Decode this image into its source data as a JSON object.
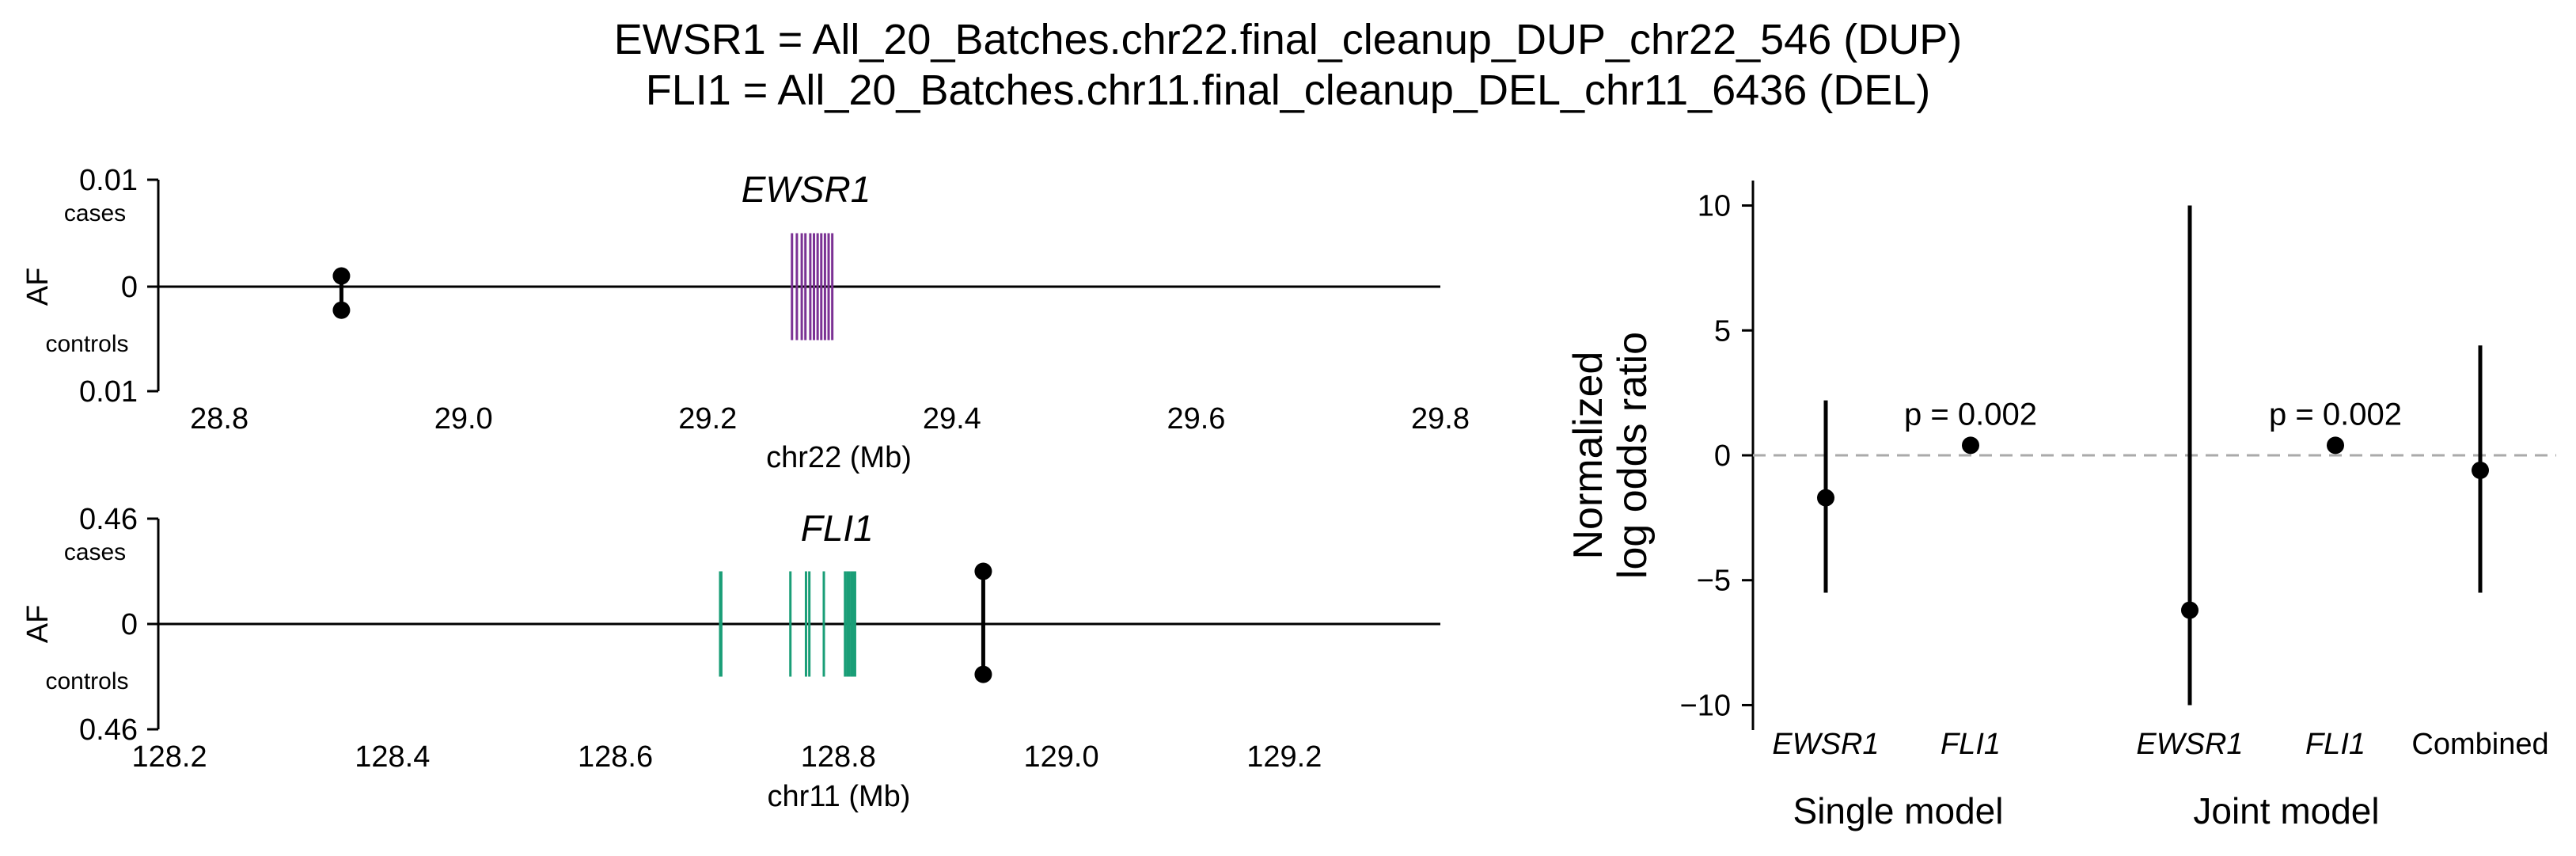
{
  "title_lines": [
    "EWSR1 = All_20_Batches.chr22.final_cleanup_DUP_chr22_546 (DUP)",
    "FLI1 = All_20_Batches.chr11.final_cleanup_DEL_chr11_6436 (DEL)"
  ],
  "colors": {
    "ewsr1": "#7b3294",
    "fli1": "#1a9e77",
    "points": "#000000",
    "reference_line": "#aaaaaa"
  },
  "chart_data": [
    {
      "id": "ewsr1_locus",
      "type": "locus",
      "gene": "EWSR1",
      "gene_color": "#7b3294",
      "xlabel": "chr22 (Mb)",
      "ylabel": "AF",
      "xlim": [
        28.75,
        29.8
      ],
      "xticks": [
        "28.8",
        "29.0",
        "29.2",
        "29.4",
        "29.6",
        "29.8"
      ],
      "xtick_values": [
        28.8,
        29.0,
        29.2,
        29.4,
        29.6,
        29.8
      ],
      "y_top_label": "0.01",
      "y_zero_label": "0",
      "y_bottom_label": "0.01",
      "cases_label": "cases",
      "controls_label": "controls",
      "af_max": 0.01,
      "exons_mb": [
        29.269,
        29.273,
        29.277,
        29.28,
        29.284,
        29.287,
        29.29,
        29.293,
        29.296,
        29.299,
        29.302
      ],
      "exon_height_fraction": 0.5,
      "variant": {
        "pos_mb": 28.9,
        "af_cases": 0.001,
        "af_controls": 0.0022
      }
    },
    {
      "id": "fli1_locus",
      "type": "locus",
      "gene": "FLI1",
      "gene_color": "#1a9e77",
      "xlabel": "chr11 (Mb)",
      "ylabel": "AF",
      "xlim": [
        128.19,
        129.34
      ],
      "xticks": [
        "128.2",
        "128.4",
        "128.6",
        "128.8",
        "129.0",
        "129.2"
      ],
      "xtick_values": [
        128.2,
        128.4,
        128.6,
        128.8,
        129.0,
        129.2
      ],
      "y_top_label": "0.46",
      "y_zero_label": "0",
      "y_bottom_label": "0.46",
      "cases_label": "cases",
      "controls_label": "controls",
      "af_max": 0.46,
      "exons_mb": [
        128.694,
        128.695,
        128.757,
        128.771,
        128.774,
        128.787,
        128.806,
        128.808,
        128.81,
        128.812,
        128.813,
        128.815
      ],
      "exon_height_fraction": 0.5,
      "variant": {
        "pos_mb": 128.93,
        "af_cases": 0.23,
        "af_controls": 0.22
      }
    },
    {
      "id": "odds_ratio",
      "type": "scatter",
      "ylabel_lines": [
        "Normalized",
        "log odds ratio"
      ],
      "ylim": [
        -11,
        11
      ],
      "yticks": [
        "10",
        "5",
        "0",
        "−5",
        "−10"
      ],
      "ytick_values": [
        10,
        5,
        0,
        -5,
        -10
      ],
      "reference_y": 0,
      "points": [
        {
          "label": "EWSR1",
          "italic": true,
          "y": -1.7,
          "lo": -5.5,
          "hi": 2.2,
          "pval": ""
        },
        {
          "label": "FLI1",
          "italic": true,
          "y": 0.4,
          "lo": 0.4,
          "hi": 0.4,
          "pval": "p = 0.002"
        },
        {
          "label": "EWSR1",
          "italic": true,
          "y": -6.2,
          "lo": -10,
          "hi": 10,
          "pval": ""
        },
        {
          "label": "FLI1",
          "italic": true,
          "y": 0.4,
          "lo": 0.4,
          "hi": 0.4,
          "pval": "p = 0.002"
        },
        {
          "label": "Combined",
          "italic": false,
          "y": -0.6,
          "lo": -5.5,
          "hi": 4.4,
          "pval": ""
        }
      ],
      "groups": [
        {
          "label": "Single model"
        },
        {
          "label": "Joint model"
        }
      ]
    }
  ]
}
